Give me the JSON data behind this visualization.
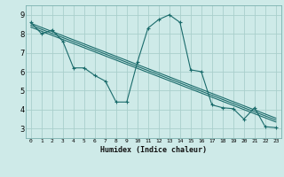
{
  "bg_color": "#ceeae8",
  "grid_color": "#aacfcc",
  "line_color": "#1a6b6b",
  "xlabel": "Humidex (Indice chaleur)",
  "xlim": [
    -0.5,
    23.5
  ],
  "ylim": [
    2.5,
    9.5
  ],
  "yticks": [
    3,
    4,
    5,
    6,
    7,
    8,
    9
  ],
  "xtick_labels": [
    "0",
    "1",
    "2",
    "3",
    "4",
    "5",
    "6",
    "7",
    "8",
    "9",
    "10",
    "11",
    "12",
    "13",
    "14",
    "15",
    "16",
    "17",
    "18",
    "19",
    "20",
    "21",
    "22",
    "23"
  ],
  "curve_x": [
    0,
    1,
    2,
    3,
    4,
    5,
    6,
    7,
    8,
    9,
    10,
    11,
    12,
    13,
    14,
    15,
    16,
    17,
    18,
    19,
    20,
    21,
    22,
    23
  ],
  "curve_y": [
    8.6,
    8.0,
    8.2,
    7.6,
    6.2,
    6.2,
    5.8,
    5.5,
    4.4,
    4.4,
    6.5,
    8.3,
    8.75,
    9.0,
    8.6,
    6.1,
    6.0,
    4.25,
    4.1,
    4.05,
    3.5,
    4.1,
    3.1,
    3.05
  ],
  "diag_lines": [
    {
      "x": [
        0,
        23
      ],
      "y": [
        8.55,
        3.55
      ]
    },
    {
      "x": [
        0,
        23
      ],
      "y": [
        8.45,
        3.45
      ]
    },
    {
      "x": [
        0,
        23
      ],
      "y": [
        8.35,
        3.35
      ]
    }
  ]
}
